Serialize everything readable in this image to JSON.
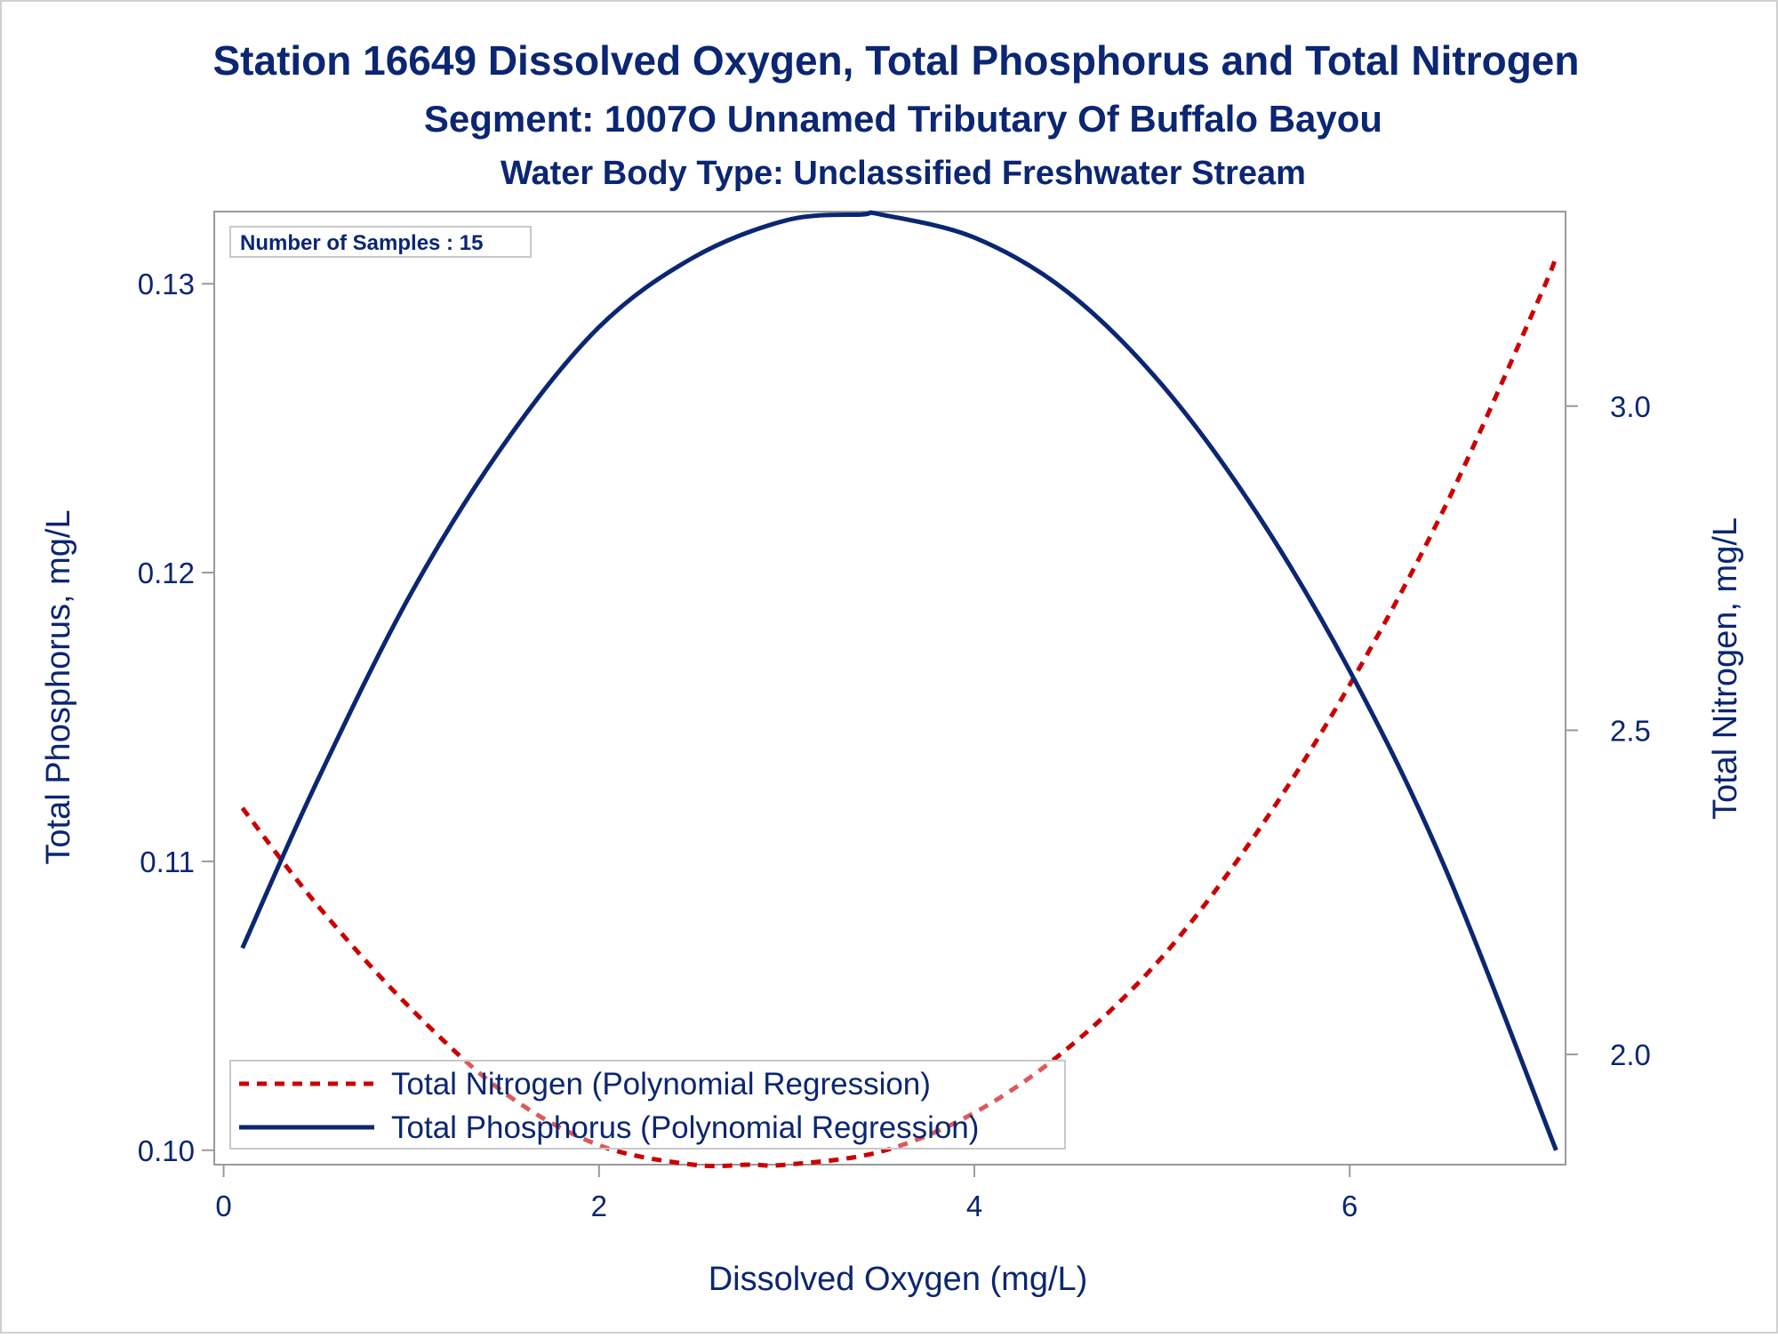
{
  "chart_data": {
    "type": "line",
    "title": "Station 16649  Dissolved Oxygen, Total Phosphorus and Total Nitrogen",
    "subtitle": "Segment: 1007O  Unnamed Tributary Of Buffalo Bayou",
    "subtitle2": "Water Body Type: Unclassified Freshwater Stream",
    "xlabel": "Dissolved Oxygen (mg/L)",
    "ylabel": "Total Phosphorus, mg/L",
    "y2label": "Total Nitrogen, mg/L",
    "xlim": [
      -0.05,
      7.15
    ],
    "ylim": [
      0.0995,
      0.1325
    ],
    "y2lim": [
      1.83,
      3.3
    ],
    "xticks": [
      "0",
      "2",
      "4",
      "6"
    ],
    "yticks": [
      "0.10",
      "0.11",
      "0.12",
      "0.13"
    ],
    "y2ticks": [
      "2.0",
      "2.5",
      "3.0"
    ],
    "inset_label": "Number of Samples : 15",
    "legend_position": "bottom-left",
    "grid": false,
    "colors": {
      "text": "#0b2672",
      "phosphorus": "#0b2672",
      "nitrogen": "#cc0000",
      "axis": "#9a9a9a"
    },
    "series": [
      {
        "name": "Total Nitrogen (Polynomial Regression)",
        "axis": "right",
        "style": "dashed",
        "color": "#cc0000",
        "x": [
          0.1,
          0.5,
          1.0,
          1.5,
          2.0,
          2.5,
          2.8,
          3.0,
          3.5,
          4.0,
          4.5,
          5.0,
          5.5,
          6.0,
          6.5,
          7.0,
          7.1
        ],
        "y": [
          2.38,
          2.23,
          2.07,
          1.94,
          1.86,
          1.83,
          1.83,
          1.83,
          1.85,
          1.91,
          2.01,
          2.15,
          2.34,
          2.57,
          2.84,
          3.16,
          3.23
        ]
      },
      {
        "name": "Total Phosphorus (Polynomial Regression)",
        "axis": "left",
        "style": "solid",
        "color": "#0b2672",
        "x": [
          0.1,
          0.5,
          1.0,
          1.5,
          2.0,
          2.5,
          3.0,
          3.4,
          3.5,
          4.0,
          4.5,
          5.0,
          5.5,
          6.0,
          6.5,
          7.1
        ],
        "y": [
          0.107,
          0.1128,
          0.1193,
          0.1245,
          0.1285,
          0.1309,
          0.1322,
          0.1324,
          0.1324,
          0.1316,
          0.1297,
          0.1265,
          0.1221,
          0.1166,
          0.1099,
          0.1
        ]
      }
    ]
  }
}
